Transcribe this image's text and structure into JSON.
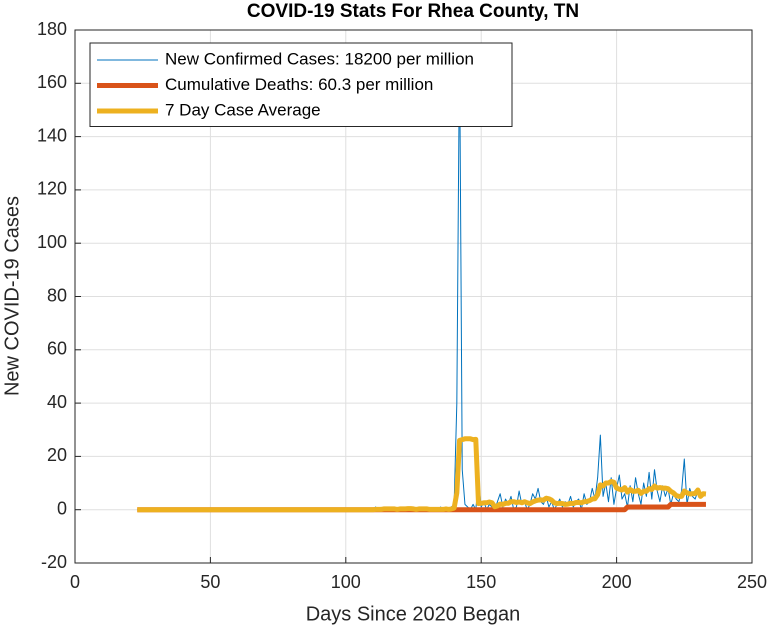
{
  "chart_data": {
    "type": "line",
    "title": "COVID-19 Stats For Rhea County, TN",
    "xlabel": "Days Since 2020 Began",
    "ylabel": "New COVID-19 Cases",
    "xlim": [
      0,
      250
    ],
    "xticks": [
      0,
      50,
      100,
      150,
      200,
      250
    ],
    "ylim": [
      -20,
      180
    ],
    "yticks": [
      -20,
      0,
      20,
      40,
      60,
      80,
      100,
      120,
      140,
      160,
      180
    ],
    "grid": true,
    "legend": "upper left",
    "x": [
      23,
      109,
      110,
      111,
      112,
      113,
      114,
      115,
      116,
      117,
      118,
      119,
      120,
      121,
      122,
      123,
      124,
      125,
      126,
      127,
      128,
      129,
      130,
      131,
      132,
      133,
      134,
      135,
      136,
      137,
      138,
      139,
      140,
      141,
      142,
      143,
      144,
      145,
      146,
      147,
      148,
      149,
      150,
      151,
      152,
      153,
      154,
      155,
      156,
      157,
      158,
      159,
      160,
      161,
      162,
      163,
      164,
      165,
      166,
      167,
      168,
      169,
      170,
      171,
      172,
      173,
      174,
      175,
      176,
      177,
      178,
      179,
      180,
      181,
      182,
      183,
      184,
      185,
      186,
      187,
      188,
      189,
      190,
      191,
      192,
      193,
      194,
      195,
      196,
      197,
      198,
      199,
      200,
      201,
      202,
      203,
      204,
      205,
      206,
      207,
      208,
      209,
      210,
      211,
      212,
      213,
      214,
      215,
      216,
      217,
      218,
      219,
      220,
      221,
      222,
      223,
      224,
      225,
      226,
      227,
      228,
      229,
      230,
      231,
      232,
      233
    ],
    "series": [
      {
        "name": "New Confirmed Cases: 18200 per million",
        "color": "#0072BD",
        "values": [
          0,
          0,
          0,
          1,
          0,
          0,
          1,
          0,
          0,
          0,
          1,
          0,
          1,
          0,
          0,
          1,
          0,
          0,
          0,
          1,
          0,
          0,
          1,
          0,
          0,
          0,
          0,
          1,
          0,
          0,
          0,
          1,
          2,
          40,
          175,
          15,
          2,
          1,
          0,
          2,
          0,
          11,
          1,
          3,
          0,
          2,
          1,
          0,
          3,
          6,
          1,
          4,
          2,
          5,
          0,
          1,
          7,
          2,
          3,
          0,
          2,
          6,
          4,
          8,
          3,
          2,
          5,
          1,
          3,
          0,
          2,
          4,
          1,
          3,
          2,
          5,
          1,
          3,
          4,
          0,
          6,
          2,
          3,
          8,
          4,
          12,
          28,
          5,
          10,
          3,
          12,
          2,
          8,
          13,
          4,
          6,
          1,
          9,
          3,
          12,
          6,
          2,
          10,
          5,
          14,
          4,
          15,
          7,
          3,
          9,
          5,
          8,
          2,
          6,
          4,
          3,
          7,
          19,
          2,
          8,
          5,
          4,
          7,
          5,
          6,
          6
        ]
      },
      {
        "name": "Cumulative Deaths: 60.3 per million",
        "color": "#D95319",
        "values": [
          0,
          0,
          0,
          0,
          0,
          0,
          0,
          0,
          0,
          0,
          0,
          0,
          0,
          0,
          0,
          0,
          0,
          0,
          0,
          0,
          0,
          0,
          0,
          0,
          0,
          0,
          0,
          0,
          0,
          0,
          0,
          0,
          0,
          0,
          0,
          0,
          0,
          0,
          0,
          0,
          0,
          0,
          0,
          0,
          0,
          0,
          0,
          0,
          0,
          0,
          0,
          0,
          0,
          0,
          0,
          0,
          0,
          0,
          0,
          0,
          0,
          0,
          0,
          0,
          0,
          0,
          0,
          0,
          0,
          0,
          0,
          0,
          0,
          0,
          0,
          0,
          0,
          0,
          0,
          0,
          0,
          0,
          0,
          0,
          0,
          0,
          0,
          0,
          0,
          0,
          0,
          0,
          0,
          0,
          0,
          0,
          1,
          1,
          1,
          1,
          1,
          1,
          1,
          1,
          1,
          1,
          1,
          1,
          1,
          1,
          1,
          1,
          2,
          2,
          2,
          2,
          2,
          2,
          2,
          2,
          2,
          2,
          2,
          2,
          2,
          2
        ]
      },
      {
        "name": "7 Day Case Average",
        "color": "#EDB120",
        "values": [
          0,
          0,
          0,
          0.1,
          0.1,
          0.1,
          0.3,
          0.3,
          0.3,
          0.3,
          0.3,
          0.1,
          0.3,
          0.3,
          0.3,
          0.4,
          0.4,
          0.3,
          0.1,
          0.3,
          0.3,
          0.3,
          0.3,
          0.1,
          0.1,
          0.1,
          0.1,
          0.1,
          0.1,
          0.3,
          0.1,
          0.3,
          0.6,
          6.3,
          26,
          26.3,
          26.6,
          26.6,
          26.6,
          26.3,
          26.4,
          2.3,
          2.4,
          2.6,
          2.6,
          2.9,
          2.6,
          1.1,
          1.4,
          2.1,
          2.0,
          2.4,
          2.4,
          3.0,
          3.0,
          2.7,
          2.9,
          2.6,
          3.0,
          2.6,
          2.3,
          2.9,
          3.3,
          3.6,
          3.7,
          3.6,
          4.3,
          4.1,
          3.6,
          2.6,
          2.3,
          2.4,
          2.3,
          2.0,
          2.1,
          2.4,
          2.3,
          2.7,
          2.7,
          2.6,
          3.0,
          3.1,
          3.4,
          4.0,
          4.1,
          5.6,
          9.3,
          8.9,
          10.0,
          10.0,
          10.6,
          10.3,
          8.1,
          7.7,
          7.4,
          8.3,
          6.6,
          7.6,
          6.9,
          6.9,
          7.3,
          6.1,
          6.9,
          6.9,
          7.9,
          7.6,
          8.9,
          8.1,
          8.3,
          8.1,
          8.1,
          7.9,
          6.9,
          6.3,
          5.3,
          5.0,
          5.0,
          7.0,
          6.3,
          5.9,
          6.0,
          6.1,
          7.4,
          5.0,
          6.0,
          5.9
        ]
      }
    ]
  }
}
